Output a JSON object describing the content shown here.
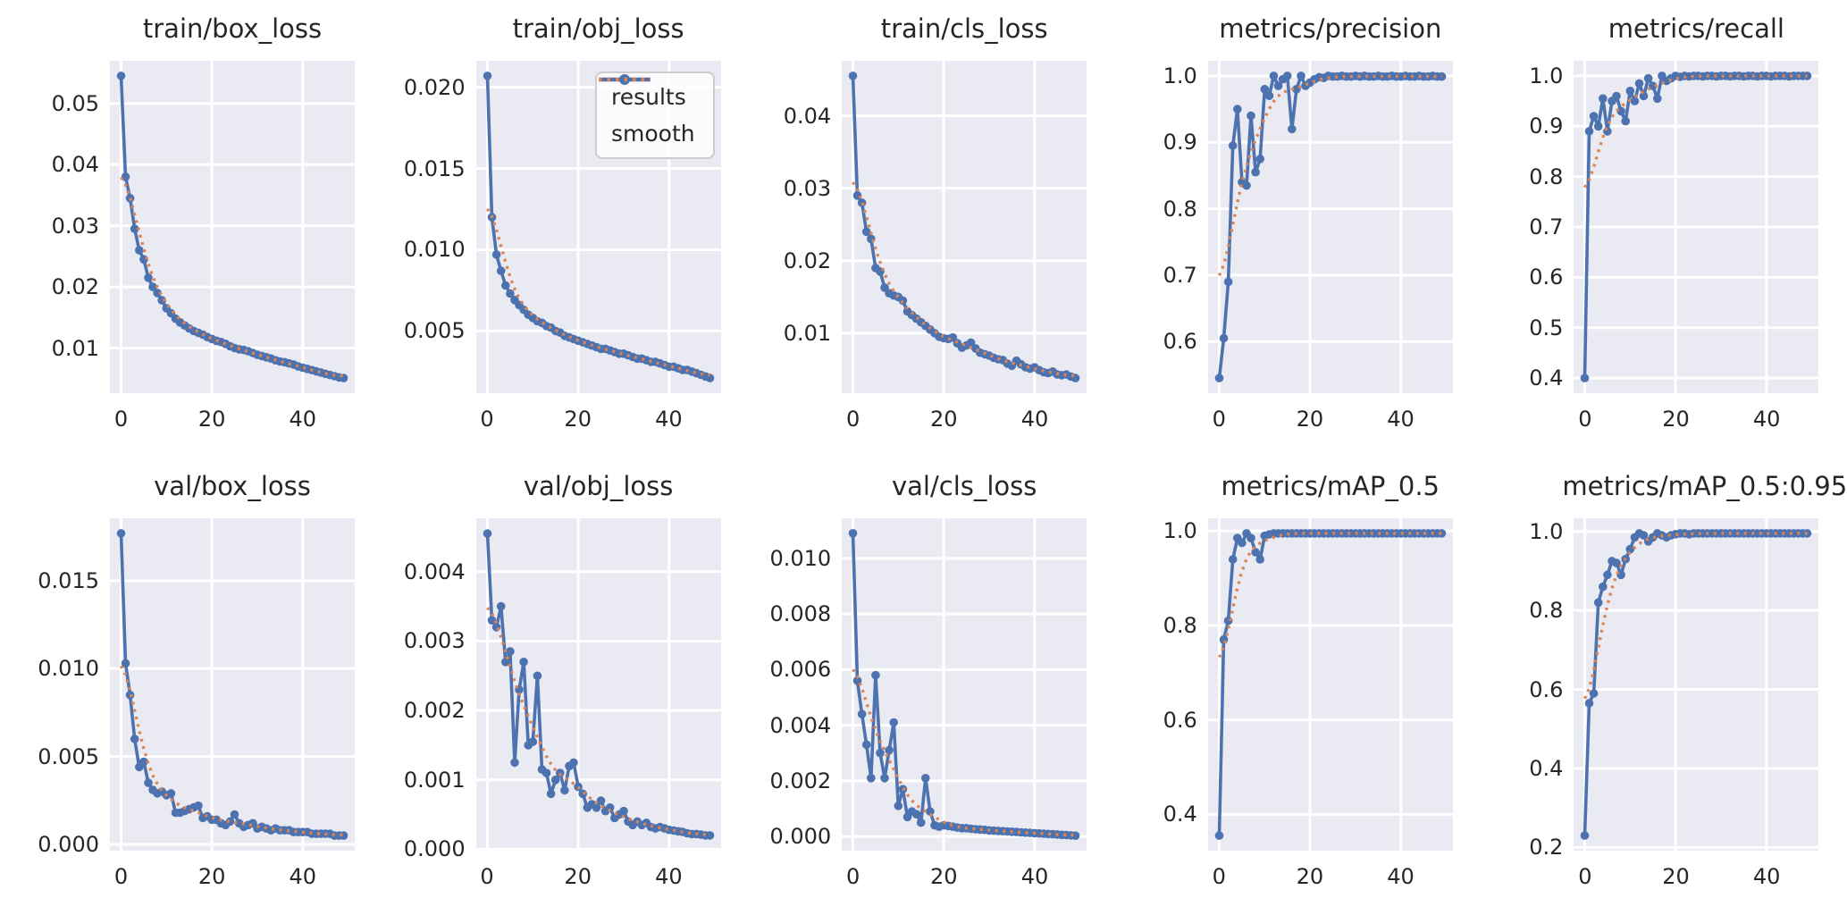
{
  "figure": {
    "background": "#ffffff",
    "panel_background": "#eaeaf2",
    "grid_color": "#ffffff",
    "text_color": "#262626",
    "results_color": "#4c72b0",
    "smooth_color": "#dd8452",
    "style": "seaborn-darkgrid line plots, 2 rows x 5 columns"
  },
  "legend": {
    "location": "upper right of train/obj_loss subplot",
    "entries": [
      {
        "label": "results",
        "color": "#4c72b0",
        "style": "solid line with circle markers"
      },
      {
        "label": "smooth",
        "color": "#dd8452",
        "style": "dotted line"
      }
    ]
  },
  "chart_common": {
    "x": [
      0,
      1,
      2,
      3,
      4,
      5,
      6,
      7,
      8,
      9,
      10,
      11,
      12,
      13,
      14,
      15,
      16,
      17,
      18,
      19,
      20,
      21,
      22,
      23,
      24,
      25,
      26,
      27,
      28,
      29,
      30,
      31,
      32,
      33,
      34,
      35,
      36,
      37,
      38,
      39,
      40,
      41,
      42,
      43,
      44,
      45,
      46,
      47,
      48,
      49
    ],
    "xlim": [
      -2.45,
      51.45
    ],
    "x_tick_labels": [
      "0",
      "20",
      "40"
    ],
    "x_tick_values": [
      0,
      20,
      40
    ],
    "grid": true,
    "smooth_series": {
      "method": "gaussian",
      "sigma": 3,
      "note": "orange dotted 'smooth' curve is a gaussian-smoothed version of 'results'"
    }
  },
  "chart_data": [
    {
      "type": "line",
      "title": "train/box_loss",
      "y_tick_labels": [
        "0.01",
        "0.02",
        "0.03",
        "0.04",
        "0.05"
      ],
      "ylim": [
        0.00263,
        0.05697
      ],
      "values": [
        0.0545,
        0.038,
        0.0345,
        0.0295,
        0.026,
        0.0245,
        0.0215,
        0.02,
        0.019,
        0.0178,
        0.0165,
        0.0157,
        0.0148,
        0.0142,
        0.0137,
        0.0132,
        0.0128,
        0.0125,
        0.0122,
        0.0118,
        0.0115,
        0.0112,
        0.011,
        0.0107,
        0.0103,
        0.01,
        0.0098,
        0.0097,
        0.0095,
        0.0092,
        0.0089,
        0.0087,
        0.0085,
        0.0083,
        0.008,
        0.0078,
        0.0077,
        0.0075,
        0.0073,
        0.007,
        0.0068,
        0.0066,
        0.0064,
        0.0062,
        0.006,
        0.0058,
        0.0056,
        0.0054,
        0.0052,
        0.0051
      ]
    },
    {
      "type": "line",
      "title": "train/obj_loss",
      "y_tick_labels": [
        "0.005",
        "0.010",
        "0.015",
        "0.020"
      ],
      "ylim": [
        0.00117,
        0.02163
      ],
      "values": [
        0.0207,
        0.012,
        0.0097,
        0.0087,
        0.0078,
        0.0073,
        0.0069,
        0.0066,
        0.0063,
        0.006,
        0.0058,
        0.0056,
        0.0055,
        0.0053,
        0.0052,
        0.005,
        0.0049,
        0.0047,
        0.0046,
        0.0045,
        0.0044,
        0.0043,
        0.0042,
        0.0041,
        0.004,
        0.0039,
        0.0039,
        0.0038,
        0.0037,
        0.0036,
        0.0036,
        0.0035,
        0.0034,
        0.0033,
        0.0033,
        0.0032,
        0.0031,
        0.0031,
        0.003,
        0.0029,
        0.0028,
        0.0028,
        0.0027,
        0.0026,
        0.0026,
        0.0025,
        0.0024,
        0.0023,
        0.0022,
        0.0021
      ]
    },
    {
      "type": "line",
      "title": "train/cls_loss",
      "y_tick_labels": [
        "0.01",
        "0.02",
        "0.03",
        "0.04"
      ],
      "ylim": [
        0.00172,
        0.04759
      ],
      "values": [
        0.0455,
        0.029,
        0.028,
        0.024,
        0.023,
        0.019,
        0.0185,
        0.0163,
        0.0155,
        0.0152,
        0.015,
        0.0145,
        0.013,
        0.0125,
        0.012,
        0.0115,
        0.011,
        0.0105,
        0.01,
        0.0095,
        0.0093,
        0.0092,
        0.0094,
        0.0086,
        0.008,
        0.0083,
        0.0087,
        0.0079,
        0.0073,
        0.0071,
        0.0069,
        0.0066,
        0.0064,
        0.0063,
        0.0058,
        0.0055,
        0.0062,
        0.0057,
        0.0053,
        0.0051,
        0.0053,
        0.0049,
        0.0046,
        0.0045,
        0.0047,
        0.0043,
        0.0042,
        0.0043,
        0.004,
        0.0038
      ]
    },
    {
      "type": "line",
      "title": "metrics/precision",
      "y_tick_labels": [
        "0.6",
        "0.7",
        "0.8",
        "0.9",
        "1.0"
      ],
      "ylim": [
        0.5223,
        1.0228
      ],
      "values": [
        0.545,
        0.605,
        0.69,
        0.895,
        0.95,
        0.84,
        0.835,
        0.94,
        0.855,
        0.875,
        0.98,
        0.97,
        1.0,
        0.985,
        0.995,
        1.0,
        0.92,
        0.98,
        1.0,
        0.985,
        0.99,
        0.995,
        0.998,
        0.997,
        1.0,
        0.999,
        0.999,
        1.0,
        0.999,
        0.999,
        1.0,
        0.999,
        1.0,
        0.999,
        0.999,
        1.0,
        0.999,
        0.999,
        1.0,
        0.999,
        0.999,
        1.0,
        0.999,
        0.999,
        1.0,
        0.999,
        0.999,
        1.0,
        0.999,
        0.999
      ]
    },
    {
      "type": "line",
      "title": "metrics/recall",
      "y_tick_labels": [
        "0.4",
        "0.5",
        "0.6",
        "0.7",
        "0.8",
        "0.9",
        "1.0"
      ],
      "ylim": [
        0.37,
        1.03
      ],
      "values": [
        0.4,
        0.89,
        0.92,
        0.9,
        0.955,
        0.89,
        0.95,
        0.96,
        0.93,
        0.91,
        0.97,
        0.95,
        0.985,
        0.96,
        0.995,
        0.98,
        0.955,
        1.0,
        0.99,
        0.995,
        1.0,
        0.998,
        1.0,
        0.999,
        1.0,
        1.0,
        0.999,
        1.0,
        1.0,
        0.999,
        1.0,
        1.0,
        0.999,
        1.0,
        1.0,
        0.999,
        1.0,
        1.0,
        0.999,
        1.0,
        1.0,
        0.999,
        1.0,
        1.0,
        1.0,
        0.999,
        1.0,
        1.0,
        1.0,
        1.0
      ]
    },
    {
      "type": "line",
      "title": "val/box_loss",
      "y_tick_labels": [
        "0.000",
        "0.005",
        "0.010",
        "0.015"
      ],
      "ylim": [
        -0.00036,
        0.01856
      ],
      "values": [
        0.0177,
        0.0103,
        0.0085,
        0.006,
        0.0044,
        0.0047,
        0.0035,
        0.0031,
        0.0029,
        0.003,
        0.0028,
        0.0029,
        0.0018,
        0.0018,
        0.0019,
        0.002,
        0.0021,
        0.0022,
        0.0015,
        0.0016,
        0.0014,
        0.0014,
        0.0012,
        0.0011,
        0.0013,
        0.0017,
        0.0012,
        0.001,
        0.0011,
        0.0012,
        0.0009,
        0.001,
        0.0009,
        0.0008,
        0.0009,
        0.0008,
        0.0008,
        0.0008,
        0.0007,
        0.0007,
        0.0007,
        0.0007,
        0.0006,
        0.0006,
        0.0006,
        0.0006,
        0.0006,
        0.0005,
        0.0005,
        0.0005
      ]
    },
    {
      "type": "line",
      "title": "val/obj_loss",
      "y_tick_labels": [
        "0.000",
        "0.001",
        "0.002",
        "0.003",
        "0.004"
      ],
      "ylim": [
        -2e-05,
        0.00477
      ],
      "values": [
        0.00455,
        0.0033,
        0.0032,
        0.0035,
        0.0027,
        0.00285,
        0.00125,
        0.0023,
        0.0027,
        0.0015,
        0.00155,
        0.0025,
        0.00115,
        0.0011,
        0.0008,
        0.001,
        0.0011,
        0.00085,
        0.0012,
        0.00125,
        0.0009,
        0.0008,
        0.0006,
        0.00065,
        0.0006,
        0.0007,
        0.00055,
        0.0006,
        0.00045,
        0.0005,
        0.00055,
        0.0004,
        0.00035,
        0.0004,
        0.00035,
        0.00038,
        0.00032,
        0.0003,
        0.00032,
        0.0003,
        0.00028,
        0.00027,
        0.00026,
        0.00025,
        0.00023,
        0.00022,
        0.00022,
        0.00021,
        0.0002,
        0.0002
      ]
    },
    {
      "type": "line",
      "title": "val/cls_loss",
      "y_tick_labels": [
        "0.000",
        "0.002",
        "0.004",
        "0.006",
        "0.008",
        "0.010"
      ],
      "ylim": [
        -0.00051,
        0.01144
      ],
      "values": [
        0.0109,
        0.0056,
        0.0044,
        0.0033,
        0.0021,
        0.0058,
        0.003,
        0.0021,
        0.0031,
        0.0041,
        0.0011,
        0.0017,
        0.0007,
        0.0009,
        0.0008,
        0.0005,
        0.0021,
        0.0009,
        0.0004,
        0.00035,
        0.0004,
        0.00038,
        0.00035,
        0.00032,
        0.0003,
        0.0003,
        0.00028,
        0.00026,
        0.00025,
        0.00024,
        0.00022,
        0.00021,
        0.0002,
        0.00019,
        0.00018,
        0.00017,
        0.00016,
        0.00015,
        0.00014,
        0.00013,
        0.00012,
        0.00011,
        0.0001,
        9e-05,
        8e-05,
        7e-05,
        6e-05,
        5e-05,
        4e-05,
        3e-05
      ]
    },
    {
      "type": "line",
      "title": "metrics/mAP_0.5",
      "y_tick_labels": [
        "0.4",
        "0.6",
        "0.8",
        "1.0"
      ],
      "ylim": [
        0.323,
        1.027
      ],
      "values": [
        0.355,
        0.77,
        0.81,
        0.94,
        0.985,
        0.975,
        0.995,
        0.985,
        0.955,
        0.94,
        0.99,
        0.993,
        0.995,
        0.995,
        0.995,
        0.995,
        0.995,
        0.995,
        0.995,
        0.995,
        0.995,
        0.995,
        0.995,
        0.995,
        0.995,
        0.995,
        0.995,
        0.995,
        0.995,
        0.995,
        0.995,
        0.995,
        0.995,
        0.995,
        0.995,
        0.995,
        0.995,
        0.995,
        0.995,
        0.995,
        0.995,
        0.995,
        0.995,
        0.995,
        0.995,
        0.995,
        0.995,
        0.995,
        0.995,
        0.995
      ]
    },
    {
      "type": "line",
      "title": "metrics/mAP_0.5:0.95",
      "y_tick_labels": [
        "0.2",
        "0.4",
        "0.6",
        "0.8",
        "1.0"
      ],
      "ylim": [
        0.1918,
        1.0333
      ],
      "values": [
        0.23,
        0.565,
        0.59,
        0.82,
        0.86,
        0.89,
        0.925,
        0.92,
        0.89,
        0.93,
        0.955,
        0.985,
        0.995,
        0.99,
        0.975,
        0.985,
        0.995,
        0.99,
        0.985,
        0.99,
        0.993,
        0.995,
        0.995,
        0.993,
        0.995,
        0.995,
        0.995,
        0.995,
        0.995,
        0.995,
        0.995,
        0.995,
        0.995,
        0.995,
        0.995,
        0.995,
        0.995,
        0.995,
        0.995,
        0.995,
        0.995,
        0.995,
        0.995,
        0.995,
        0.995,
        0.995,
        0.995,
        0.995,
        0.995,
        0.995
      ]
    }
  ]
}
